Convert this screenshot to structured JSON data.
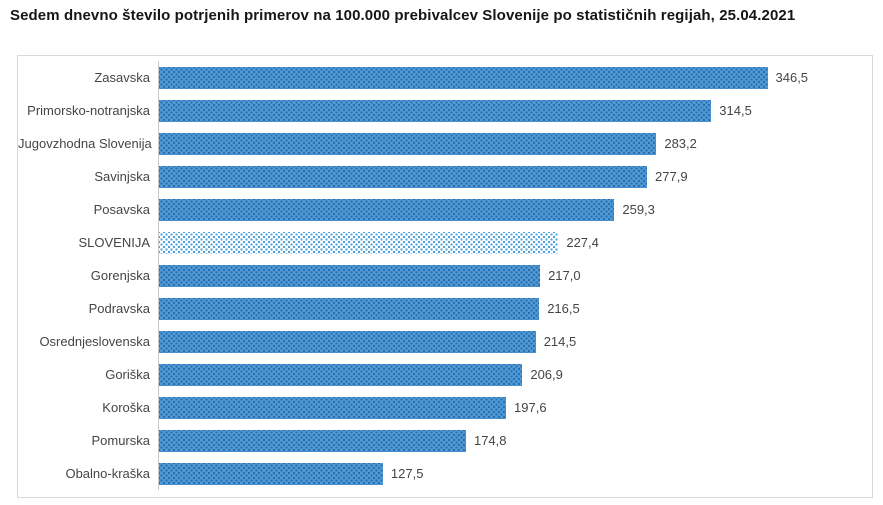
{
  "title": "Sedem dnevno število potrjenih primerov na 100.000 prebivalcev Slovenije po statističnih regijah, 25.04.2021",
  "chart_data": {
    "type": "bar",
    "orientation": "horizontal",
    "title": "Sedem dnevno število potrjenih primerov na 100.000 prebivalcev Slovenije po statističnih regijah, 25.04.2021",
    "xlabel": "",
    "ylabel": "",
    "xlim": [
      0,
      406
    ],
    "grid": false,
    "legend": false,
    "categories": [
      "Zasavska",
      "Primorsko-notranjska",
      "Jugovzhodna Slovenija",
      "Savinjska",
      "Posavska",
      "SLOVENIJA",
      "Gorenjska",
      "Podravska",
      "Osrednjeslovenska",
      "Goriška",
      "Koroška",
      "Pomurska",
      "Obalno-kraška"
    ],
    "values": [
      346.5,
      314.5,
      283.2,
      277.9,
      259.3,
      227.4,
      217.0,
      216.5,
      214.5,
      206.9,
      197.6,
      174.8,
      127.5
    ],
    "value_labels": [
      "346,5",
      "314,5",
      "283,2",
      "277,9",
      "259,3",
      "227,4",
      "217,0",
      "216,5",
      "214,5",
      "206,9",
      "197,6",
      "174,8",
      "127,5"
    ],
    "highlight_category": "SLOVENIJA",
    "bar_color": "#4f9ad6",
    "bar_dot_color": "#2a6cac",
    "highlight_bar_color": "#fdfeff",
    "highlight_dot_color": "#4ba0d9"
  },
  "colors": {
    "chart_border": "#d9d9d9",
    "axis_line": "#c9c9c9",
    "label_text": "#454545",
    "title_text": "#161616"
  }
}
